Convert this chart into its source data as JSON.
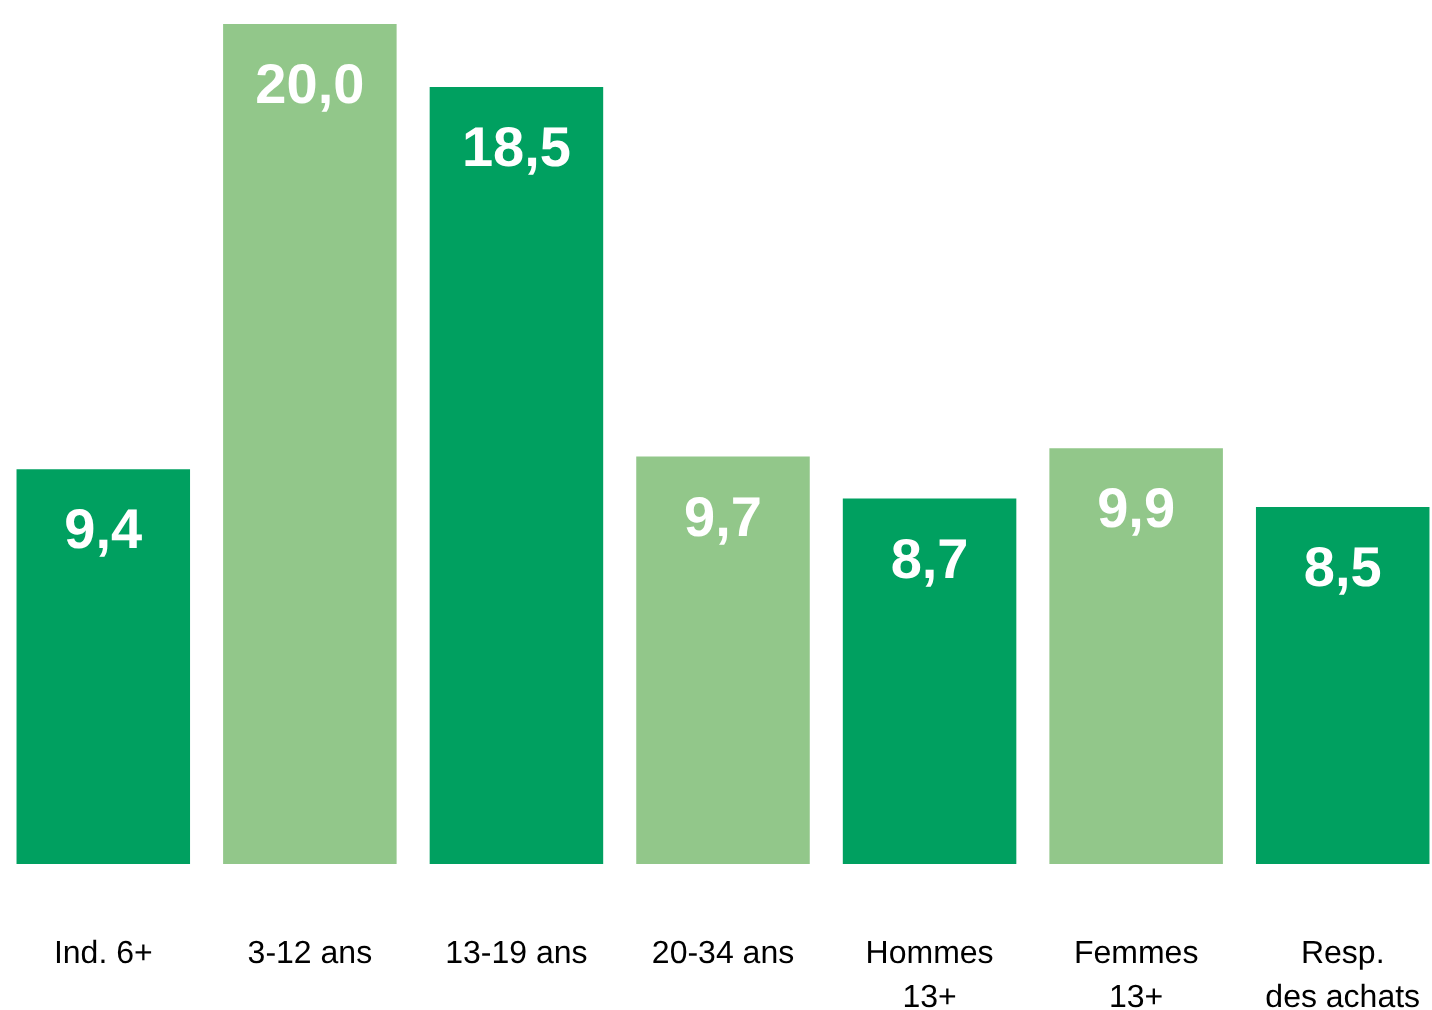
{
  "chart_data": {
    "type": "bar",
    "categories": [
      "Ind. 6+",
      "3-12 ans",
      "13-19 ans",
      "20-34 ans",
      "Hommes\n13+",
      "Femmes\n13+",
      "Resp.\ndes achats"
    ],
    "values": [
      9.4,
      20.0,
      18.5,
      9.7,
      8.7,
      9.9,
      8.5
    ],
    "colors": [
      "#00a060",
      "#92c78a",
      "#00a060",
      "#92c78a",
      "#00a060",
      "#92c78a",
      "#00a060"
    ],
    "value_labels": [
      "9,4",
      "20,0",
      "18,5",
      "9,7",
      "8,7",
      "9,9",
      "8,5"
    ],
    "ylim": [
      0,
      20
    ],
    "grid": false,
    "tick_labels": "x"
  }
}
